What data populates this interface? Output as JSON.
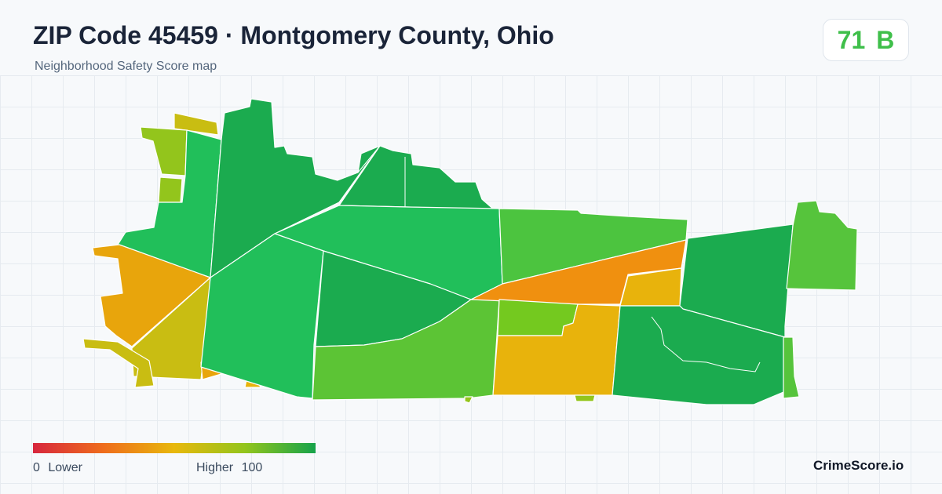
{
  "header": {
    "title": "ZIP Code 45459 · Montgomery County, Ohio",
    "subtitle": "Neighborhood Safety Score map"
  },
  "score": {
    "value": "71",
    "grade": "B",
    "color": "#3fbf4a"
  },
  "legend": {
    "min": "0",
    "min_label": "Lower",
    "max_label": "Higher",
    "max": "100",
    "gradient_colors": [
      "#d7263d",
      "#ef6d1c",
      "#e8b80c",
      "#93c51c",
      "#16a34a"
    ]
  },
  "brand": "CrimeScore.io",
  "map": {
    "region_colors": {
      "dark_green": "#1bab4f",
      "green": "#21bf5a",
      "light_green": "#4cc43f",
      "yellow_green": "#93c51c",
      "olive": "#c9bd12",
      "amber": "#e8b30c",
      "orange": "#f0900f",
      "red_orange": "#ef7d14"
    }
  }
}
